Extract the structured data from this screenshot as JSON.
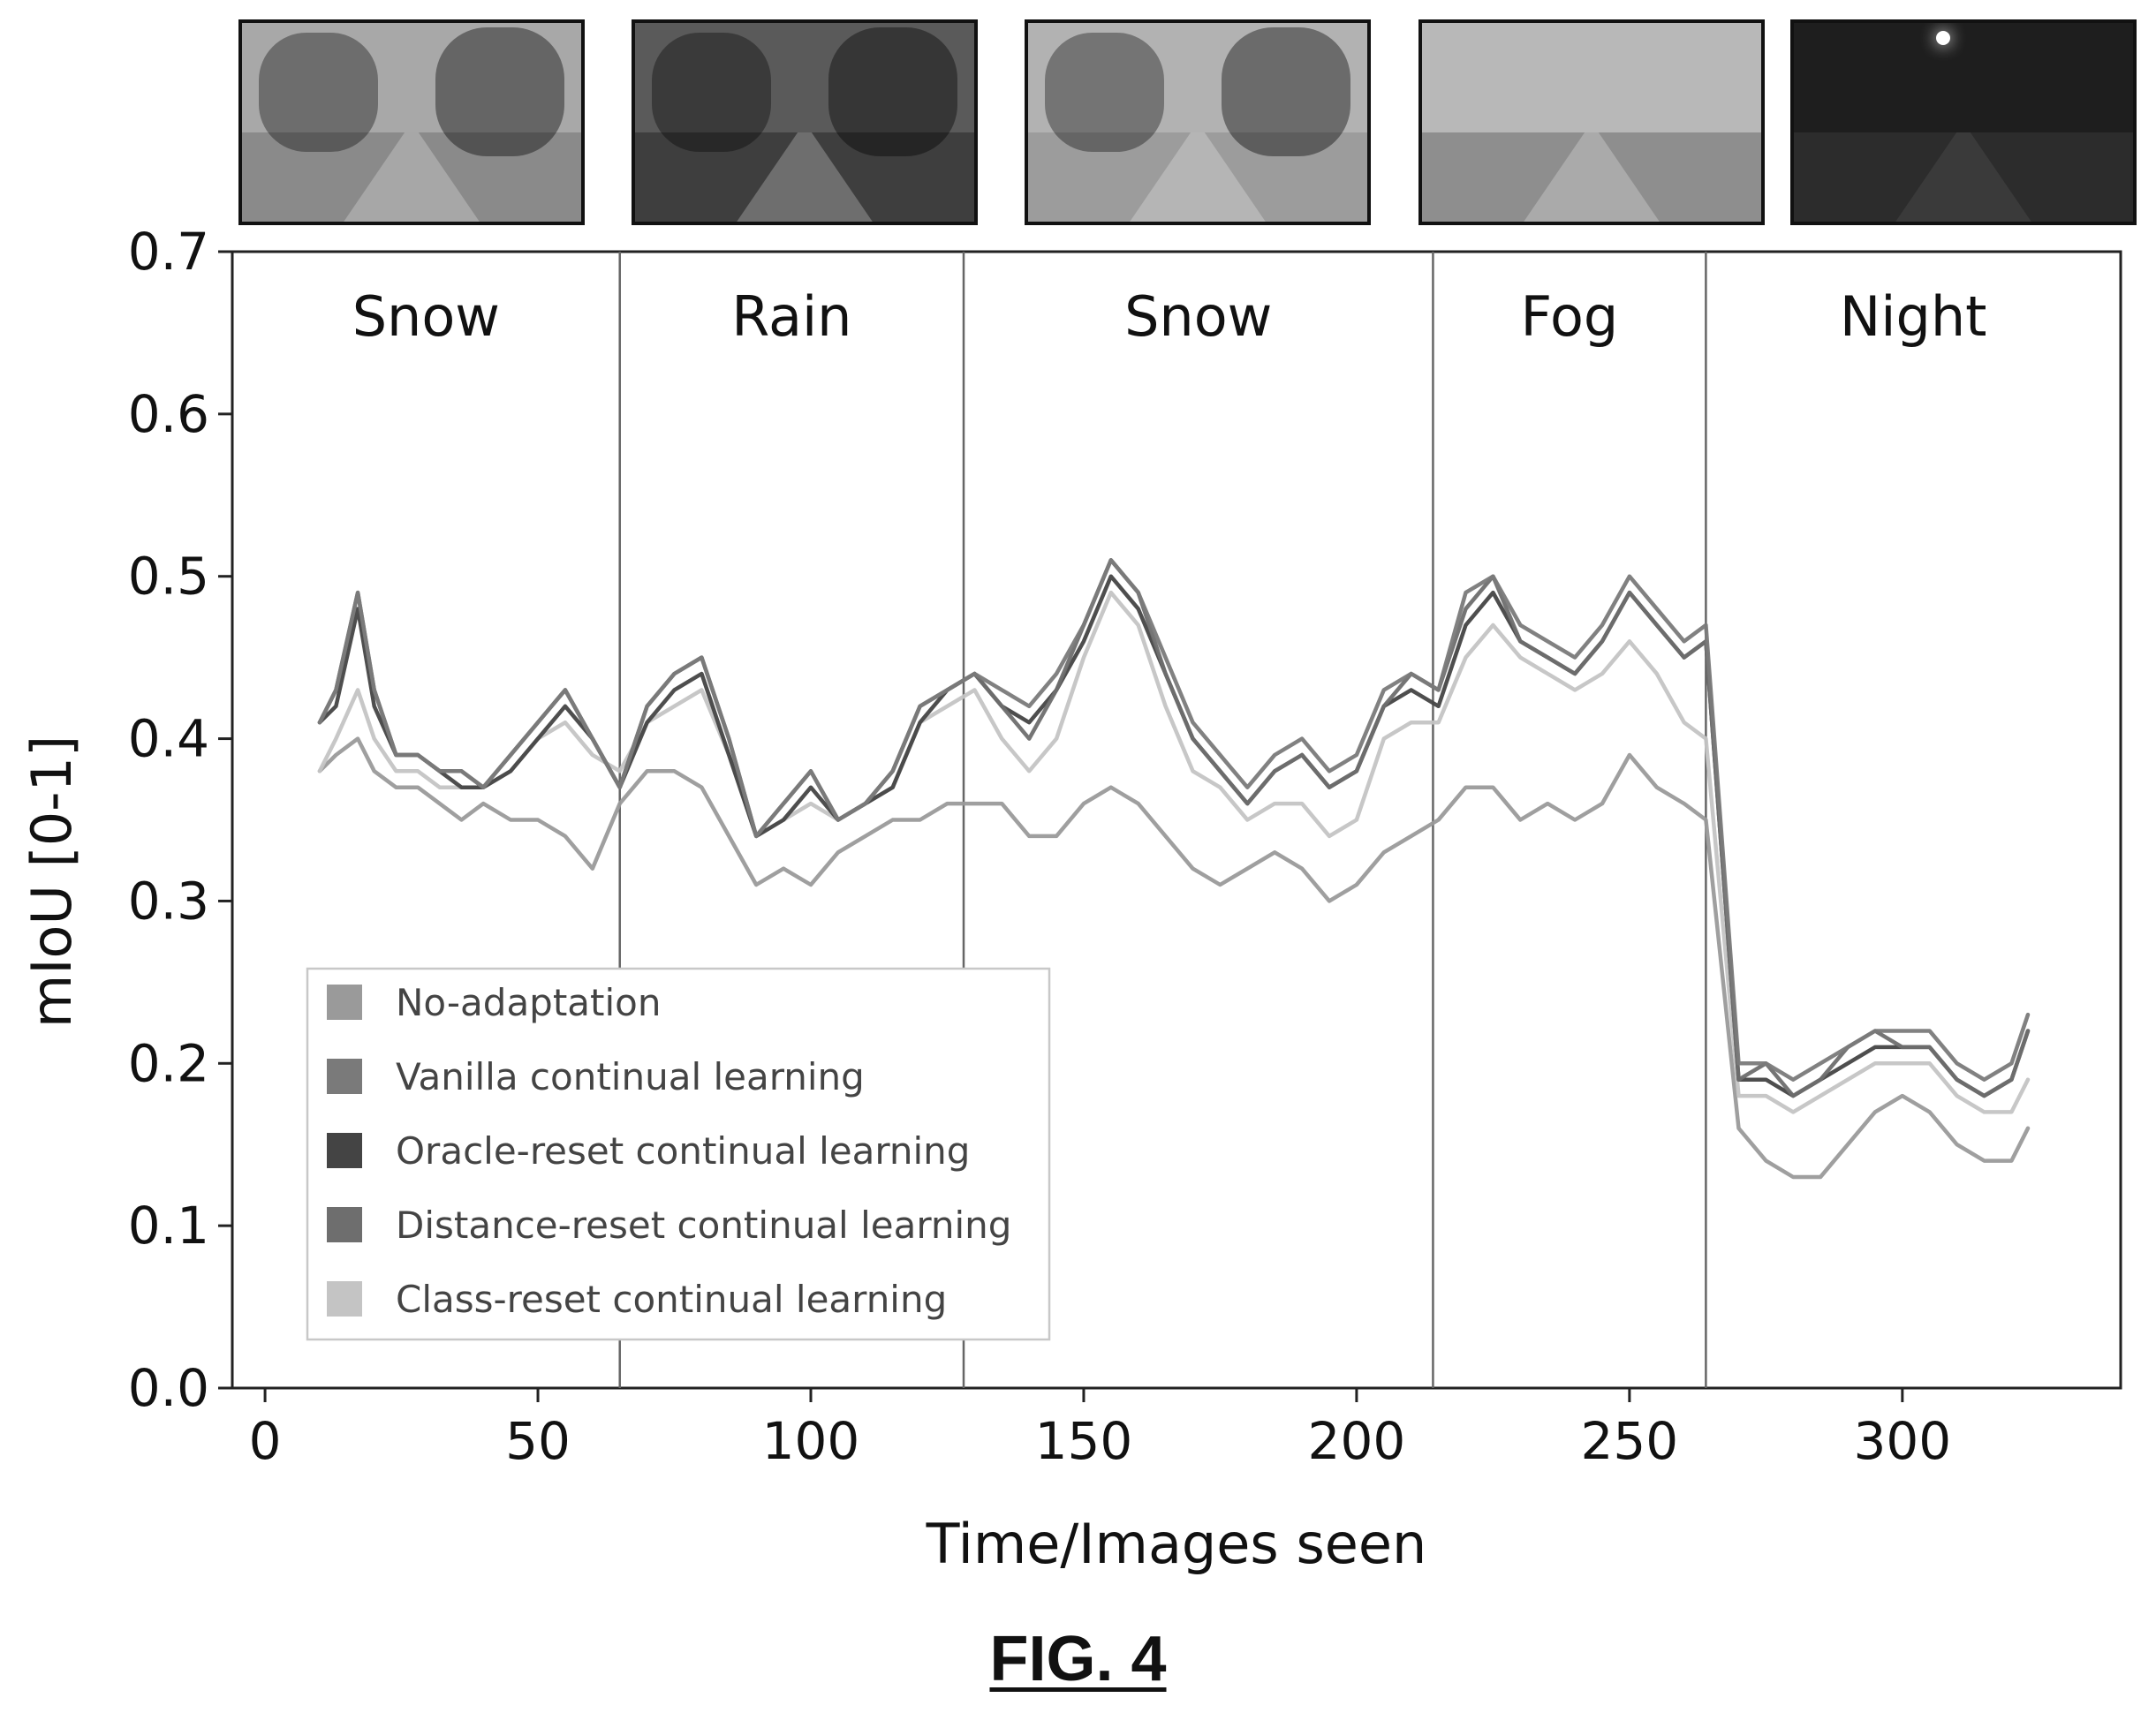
{
  "chart_data": {
    "type": "line",
    "title": "",
    "xlabel": "Time/Images seen",
    "ylabel": "mIoU [0-1]",
    "xlim": [
      -6,
      340
    ],
    "ylim": [
      0.0,
      0.7
    ],
    "xticks": [
      0,
      50,
      100,
      150,
      200,
      250,
      300
    ],
    "yticks": [
      0.0,
      0.1,
      0.2,
      0.3,
      0.4,
      0.5,
      0.6,
      0.7
    ],
    "xtick_labels": [
      "0",
      "50",
      "100",
      "150",
      "200",
      "250",
      "300"
    ],
    "ytick_labels": [
      "0.0",
      "0.1",
      "0.2",
      "0.3",
      "0.4",
      "0.5",
      "0.6",
      "0.7"
    ],
    "grid": false,
    "legend_position": "lower-left",
    "segment_boundaries": [
      65,
      128,
      214,
      264
    ],
    "segments": [
      {
        "label": "Snow",
        "x_start": -6,
        "x_end": 65
      },
      {
        "label": "Rain",
        "x_start": 65,
        "x_end": 128
      },
      {
        "label": "Snow",
        "x_start": 128,
        "x_end": 214
      },
      {
        "label": "Fog",
        "x_start": 214,
        "x_end": 264
      },
      {
        "label": "Night",
        "x_start": 264,
        "x_end": 340
      }
    ],
    "x": [
      10,
      13,
      17,
      20,
      24,
      28,
      32,
      36,
      40,
      45,
      50,
      55,
      60,
      65,
      70,
      75,
      80,
      85,
      90,
      95,
      100,
      105,
      110,
      115,
      120,
      125,
      130,
      135,
      140,
      145,
      150,
      155,
      160,
      165,
      170,
      175,
      180,
      185,
      190,
      195,
      200,
      205,
      210,
      215,
      220,
      225,
      230,
      235,
      240,
      245,
      250,
      255,
      260,
      264,
      270,
      275,
      280,
      285,
      290,
      295,
      300,
      305,
      310,
      315,
      320,
      323
    ],
    "series": [
      {
        "name": "No-adaptation",
        "color": "#9a9a9a",
        "values": [
          0.38,
          0.39,
          0.4,
          0.38,
          0.37,
          0.37,
          0.36,
          0.35,
          0.36,
          0.35,
          0.35,
          0.34,
          0.32,
          0.36,
          0.38,
          0.38,
          0.37,
          0.34,
          0.31,
          0.32,
          0.31,
          0.33,
          0.34,
          0.35,
          0.35,
          0.36,
          0.36,
          0.36,
          0.34,
          0.34,
          0.36,
          0.37,
          0.36,
          0.34,
          0.32,
          0.31,
          0.32,
          0.33,
          0.32,
          0.3,
          0.31,
          0.33,
          0.34,
          0.35,
          0.37,
          0.37,
          0.35,
          0.36,
          0.35,
          0.36,
          0.39,
          0.37,
          0.36,
          0.35,
          0.16,
          0.14,
          0.13,
          0.13,
          0.15,
          0.17,
          0.18,
          0.17,
          0.15,
          0.14,
          0.14,
          0.16
        ]
      },
      {
        "name": "Vanilla continual learning",
        "color": "#7a7a7a",
        "values": [
          0.41,
          0.43,
          0.49,
          0.43,
          0.39,
          0.39,
          0.38,
          0.38,
          0.37,
          0.39,
          0.41,
          0.43,
          0.4,
          0.37,
          0.42,
          0.44,
          0.45,
          0.4,
          0.34,
          0.36,
          0.38,
          0.35,
          0.36,
          0.38,
          0.42,
          0.43,
          0.44,
          0.43,
          0.42,
          0.44,
          0.47,
          0.51,
          0.49,
          0.45,
          0.41,
          0.39,
          0.37,
          0.39,
          0.4,
          0.38,
          0.39,
          0.43,
          0.44,
          0.43,
          0.49,
          0.5,
          0.47,
          0.46,
          0.45,
          0.47,
          0.5,
          0.48,
          0.46,
          0.47,
          0.2,
          0.2,
          0.19,
          0.2,
          0.21,
          0.22,
          0.22,
          0.22,
          0.2,
          0.19,
          0.2,
          0.23
        ]
      },
      {
        "name": "Oracle-reset continual learning",
        "color": "#444444",
        "values": [
          0.41,
          0.42,
          0.48,
          0.42,
          0.39,
          0.39,
          0.38,
          0.37,
          0.37,
          0.38,
          0.4,
          0.42,
          0.4,
          0.37,
          0.41,
          0.43,
          0.44,
          0.39,
          0.34,
          0.35,
          0.37,
          0.35,
          0.36,
          0.37,
          0.41,
          0.43,
          0.44,
          0.42,
          0.41,
          0.43,
          0.46,
          0.5,
          0.48,
          0.44,
          0.4,
          0.38,
          0.36,
          0.38,
          0.39,
          0.37,
          0.38,
          0.42,
          0.43,
          0.42,
          0.47,
          0.49,
          0.46,
          0.45,
          0.44,
          0.46,
          0.49,
          0.47,
          0.45,
          0.46,
          0.19,
          0.19,
          0.18,
          0.19,
          0.2,
          0.21,
          0.21,
          0.21,
          0.19,
          0.18,
          0.19,
          0.22
        ]
      },
      {
        "name": "Distance-reset continual learning",
        "color": "#6e6e6e",
        "values": [
          0.41,
          0.43,
          0.49,
          0.43,
          0.39,
          0.39,
          0.38,
          0.38,
          0.37,
          0.39,
          0.41,
          0.43,
          0.4,
          0.37,
          0.42,
          0.44,
          0.45,
          0.4,
          0.34,
          0.36,
          0.38,
          0.35,
          0.36,
          0.38,
          0.42,
          0.43,
          0.44,
          0.42,
          0.4,
          0.43,
          0.47,
          0.51,
          0.49,
          0.44,
          0.4,
          0.38,
          0.36,
          0.38,
          0.39,
          0.37,
          0.38,
          0.42,
          0.44,
          0.43,
          0.48,
          0.5,
          0.46,
          0.45,
          0.44,
          0.46,
          0.49,
          0.47,
          0.45,
          0.46,
          0.19,
          0.2,
          0.18,
          0.19,
          0.21,
          0.22,
          0.21,
          0.21,
          0.19,
          0.18,
          0.19,
          0.22
        ]
      },
      {
        "name": "Class-reset continual learning",
        "color": "#c4c4c4",
        "values": [
          0.38,
          0.4,
          0.43,
          0.4,
          0.38,
          0.38,
          0.37,
          0.37,
          0.37,
          0.38,
          0.4,
          0.41,
          0.39,
          0.38,
          0.41,
          0.42,
          0.43,
          0.39,
          0.34,
          0.35,
          0.36,
          0.35,
          0.36,
          0.37,
          0.41,
          0.42,
          0.43,
          0.4,
          0.38,
          0.4,
          0.45,
          0.49,
          0.47,
          0.42,
          0.38,
          0.37,
          0.35,
          0.36,
          0.36,
          0.34,
          0.35,
          0.4,
          0.41,
          0.41,
          0.45,
          0.47,
          0.45,
          0.44,
          0.43,
          0.44,
          0.46,
          0.44,
          0.41,
          0.4,
          0.18,
          0.18,
          0.17,
          0.18,
          0.19,
          0.2,
          0.2,
          0.2,
          0.18,
          0.17,
          0.17,
          0.19
        ]
      }
    ]
  },
  "thumbnails": [
    {
      "scene": "snow",
      "sky_color": "#a8a8a8",
      "ground_color": "#8a8a8a"
    },
    {
      "scene": "rain",
      "sky_color": "#5a5a5a",
      "ground_color": "#3e3e3e"
    },
    {
      "scene": "snow",
      "sky_color": "#b2b2b2",
      "ground_color": "#9c9c9c"
    },
    {
      "scene": "fog",
      "sky_color": "#b8b8b8",
      "ground_color": "#8e8e8e"
    },
    {
      "scene": "night",
      "sky_color": "#1e1e1e",
      "ground_color": "#2c2c2c"
    }
  ],
  "figure_label": "FIG. 4"
}
